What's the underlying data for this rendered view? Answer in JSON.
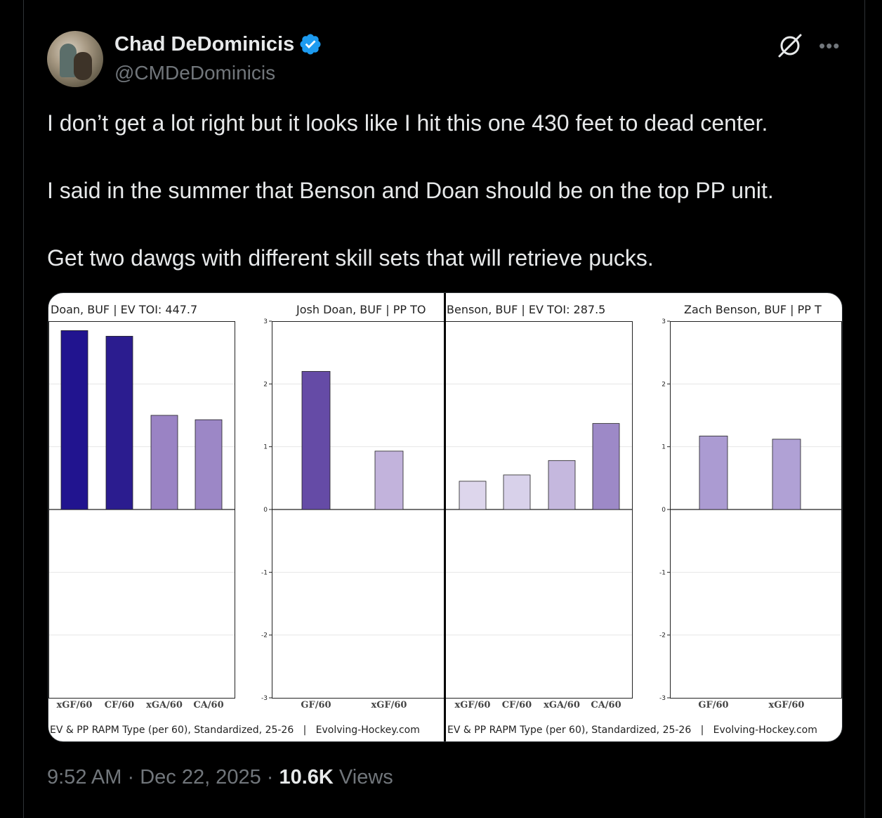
{
  "author": {
    "display_name": "Chad DeDominicis",
    "handle": "@CMDeDominicis",
    "verified": true,
    "avatar_icon": "profile-photo"
  },
  "icons": {
    "grok": "grok-icon",
    "more": "more-icon",
    "verified": "verified-badge-icon"
  },
  "tweet": {
    "lines": [
      "I don’t get a lot right but it looks like I hit this one 430 feet to dead center.",
      "I said in the summer that Benson and Doan should be on the top PP unit.",
      "Get two dawgs with different skill sets that will retrieve pucks."
    ]
  },
  "meta": {
    "time": "9:52 AM",
    "sep1": " · ",
    "date": "Dec 22, 2025",
    "sep2": " · ",
    "views_count": "10.6K",
    "views_label": " Views"
  },
  "colors": {
    "accent_blue": "#1d9bf0",
    "muted": "#71767b",
    "text": "#e7e9ea"
  },
  "media": {
    "left_footer": "EV & PP RAPM Type (per 60), Standardized, 25-26   |   Evolving-Hockey.com",
    "right_footer": "EV & PP RAPM Type (per 60), Standardized, 25-26   |   Evolving-Hockey.com"
  },
  "chart_data": [
    {
      "type": "bar",
      "title": "Doan, BUF  |  EV TOI: 447.7",
      "categories": [
        "xGF/60",
        "CF/60",
        "xGA/60",
        "CA/60"
      ],
      "values": [
        2.85,
        2.76,
        1.5,
        1.43
      ],
      "colors": [
        "#21148f",
        "#2b1c8f",
        "#9a83c4",
        "#9c87c6"
      ],
      "ylim": [
        -3,
        3
      ],
      "yticks_visible": false,
      "grid": true
    },
    {
      "type": "bar",
      "title": "Josh Doan, BUF  |  PP TO",
      "categories": [
        "GF/60",
        "xGF/60"
      ],
      "values": [
        2.2,
        0.93
      ],
      "colors": [
        "#654ba6",
        "#c2b3dc"
      ],
      "ylim": [
        -3,
        3
      ],
      "yticks": [
        3,
        2,
        1,
        0,
        -1,
        -2,
        -3
      ],
      "grid": true
    },
    {
      "type": "bar",
      "title": "Benson, BUF  |  EV TOI: 287.5",
      "categories": [
        "xGF/60",
        "CF/60",
        "xGA/60",
        "CA/60"
      ],
      "values": [
        0.45,
        0.55,
        0.78,
        1.37
      ],
      "colors": [
        "#ddd6ec",
        "#d8d1ea",
        "#c5b8de",
        "#9d89c7"
      ],
      "ylim": [
        -3,
        3
      ],
      "yticks_visible": false,
      "grid": true
    },
    {
      "type": "bar",
      "title": "Zach Benson, BUF  |  PP T",
      "categories": [
        "GF/60",
        "xGF/60"
      ],
      "values": [
        1.17,
        1.12
      ],
      "colors": [
        "#ab9bd2",
        "#b0a1d5"
      ],
      "ylim": [
        -3,
        3
      ],
      "yticks": [
        3,
        2,
        1,
        0,
        -1,
        -2,
        -3
      ],
      "grid": true
    }
  ]
}
